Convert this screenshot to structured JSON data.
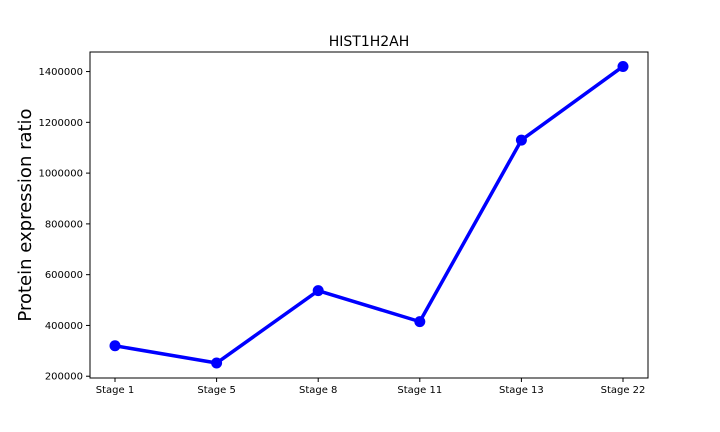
{
  "chart_data": {
    "type": "line",
    "title": "HIST1H2AH",
    "xlabel": "",
    "ylabel": "Protein expression ratio",
    "categories": [
      "Stage 1",
      "Stage 5",
      "Stage 8",
      "Stage 11",
      "Stage 13",
      "Stage 22"
    ],
    "series": [
      {
        "values": [
          320000,
          252000,
          537000,
          415000,
          1130000,
          1420000
        ]
      }
    ],
    "yticks": [
      200000,
      400000,
      600000,
      800000,
      1000000,
      1200000,
      1400000
    ],
    "ytick_labels": [
      "200000",
      "400000",
      "600000",
      "800000",
      "1000000",
      "1200000",
      "1400000"
    ],
    "ylim": [
      193000,
      1477000
    ],
    "grid": false,
    "colors": {
      "line": "#0000ff",
      "marker": "#0000ff",
      "axes": "#000000"
    }
  }
}
